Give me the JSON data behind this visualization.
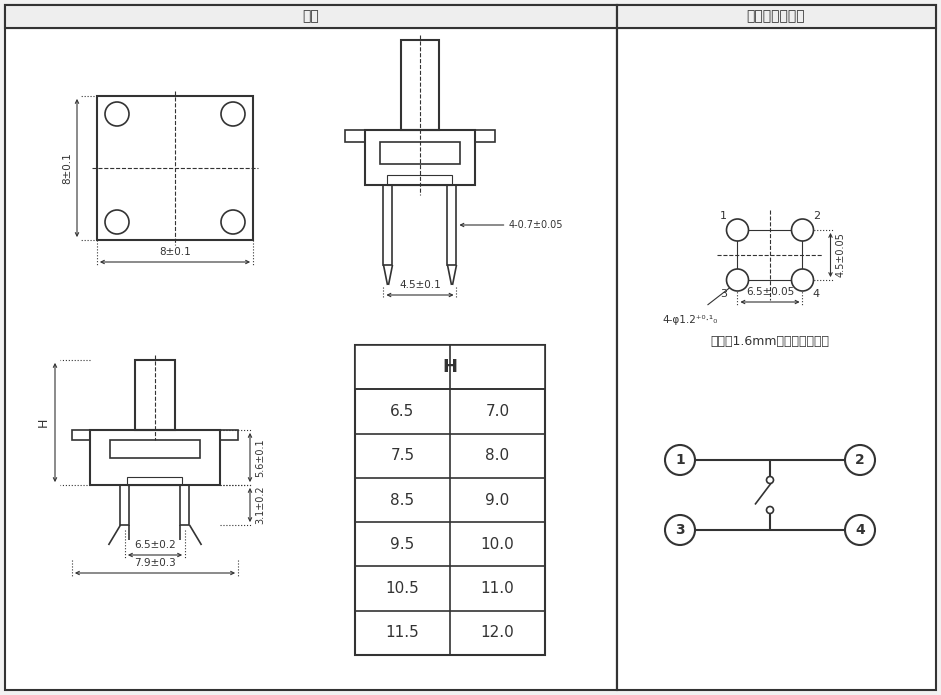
{
  "title_left": "尺寸",
  "title_right": "安装图及电路图",
  "bg_color": "#f2f2f2",
  "panel_color": "#ffffff",
  "line_color": "#333333",
  "table_header": "H",
  "table_rows": [
    [
      "6.5",
      "7.0"
    ],
    [
      "7.5",
      "8.0"
    ],
    [
      "8.5",
      "9.0"
    ],
    [
      "9.5",
      "10.0"
    ],
    [
      "10.5",
      "11.0"
    ],
    [
      "11.5",
      "12.0"
    ]
  ],
  "dim_top_view_w": "8±0.1",
  "dim_top_view_h": "8±0.1",
  "dim_sv_pin_w": "4.5±0.1",
  "dim_sv_pin_leg": "4-0.7±0.05",
  "dim_fv_body_h": "5.6±0.1",
  "dim_fv_pin_h": "3.1±0.2",
  "dim_fv_w1": "6.5±0.2",
  "dim_fv_w2": "7.9±0.3",
  "pcb_hole_label": "4-φ1.2",
  "pcb_hole_tol": "+0.1\n0",
  "pcb_width_label": "6.5±0.05",
  "pcb_height_label": "4.5±0.05",
  "pcb_note": "请使用1.6mm厚的印刷电路板"
}
